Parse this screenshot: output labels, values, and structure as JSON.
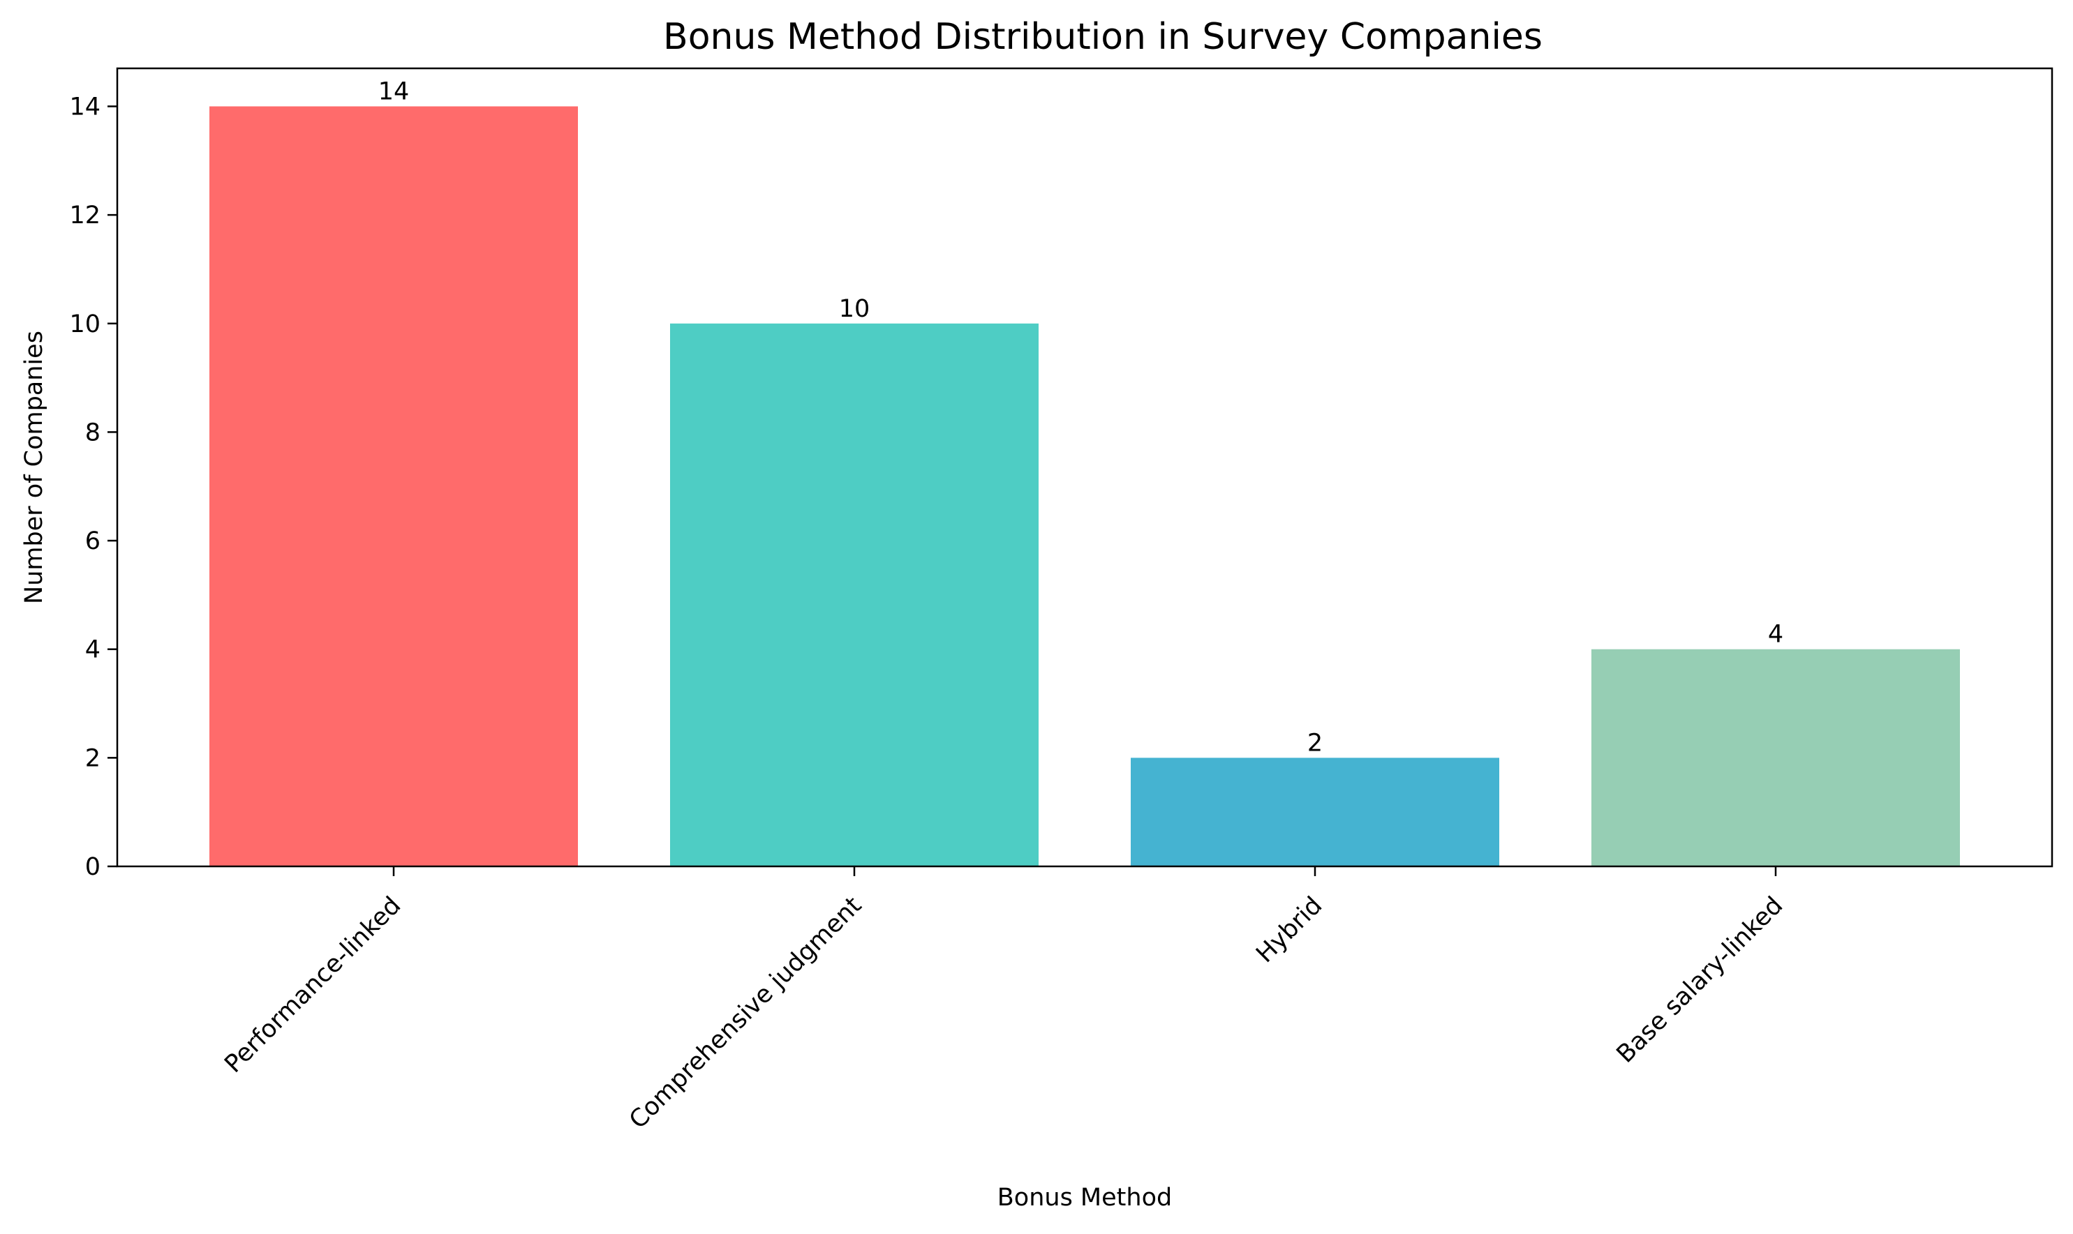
{
  "chart_data": {
    "type": "bar",
    "title": "Bonus Method Distribution in Survey Companies",
    "xlabel": "Bonus Method",
    "ylabel": "Number of Companies",
    "categories": [
      "Performance-linked",
      "Comprehensive judgment",
      "Hybrid",
      "Base salary-linked"
    ],
    "values": [
      14,
      10,
      2,
      4
    ],
    "data_labels": [
      "14",
      "10",
      "2",
      "4"
    ],
    "colors": [
      "#ff6b6b",
      "#4ecdc4",
      "#45b3d1",
      "#96ceb4"
    ],
    "ylim": [
      0,
      14.7
    ],
    "yticks": [
      0,
      2,
      4,
      6,
      8,
      10,
      12,
      14
    ],
    "ytick_labels": [
      "0",
      "2",
      "4",
      "6",
      "8",
      "10",
      "12",
      "14"
    ],
    "grid": false,
    "legend": "none"
  }
}
